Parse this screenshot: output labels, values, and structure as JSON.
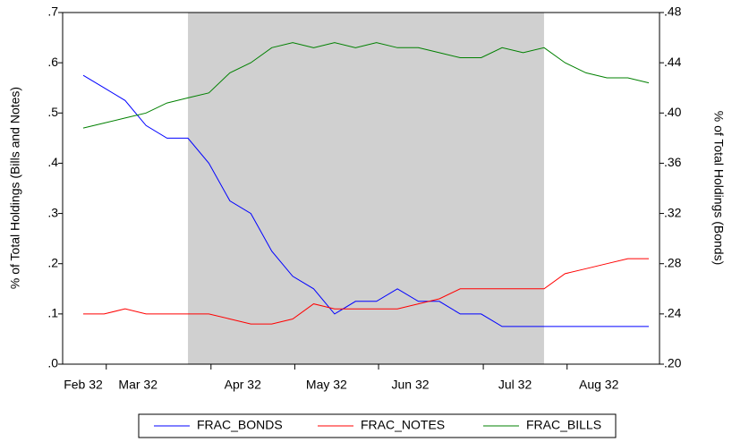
{
  "chart_data": {
    "type": "line",
    "categories": [
      "Feb 32",
      null,
      null,
      "Mar 32",
      null,
      null,
      null,
      null,
      "Apr 32",
      null,
      null,
      null,
      "May 32",
      null,
      null,
      null,
      "Jun 32",
      null,
      null,
      null,
      null,
      "Jul 32",
      null,
      null,
      null,
      "Aug 32",
      null,
      null
    ],
    "y_label": "% of Total Holdings (Bills and Notes)",
    "y2_label": "% of Total Holdings (Bonds)",
    "ylim": [
      0,
      0.7
    ],
    "yticks": [
      {
        "value": 0,
        "label": ".0"
      },
      {
        "value": 0.1,
        "label": ".1"
      },
      {
        "value": 0.2,
        "label": ".2"
      },
      {
        "value": 0.3,
        "label": ".3"
      },
      {
        "value": 0.4,
        "label": ".4"
      },
      {
        "value": 0.5,
        "label": ".5"
      },
      {
        "value": 0.6,
        "label": ".6"
      },
      {
        "value": 0.7,
        "label": ".7"
      }
    ],
    "y2lim": [
      0.2,
      0.48
    ],
    "y2ticks": [
      {
        "value": 0.2,
        "label": ".20"
      },
      {
        "value": 0.24,
        "label": ".24"
      },
      {
        "value": 0.28,
        "label": ".28"
      },
      {
        "value": 0.32,
        "label": ".32"
      },
      {
        "value": 0.36,
        "label": ".36"
      },
      {
        "value": 0.4,
        "label": ".40"
      },
      {
        "value": 0.44,
        "label": ".44"
      },
      {
        "value": 0.48,
        "label": ".48"
      }
    ],
    "shading": [
      5,
      22
    ],
    "shading_color": "#d0d0d0",
    "series": [
      {
        "name": "FRAC_BONDS",
        "color": "#0000ff",
        "axis": "y2",
        "values": [
          0.43,
          0.42,
          0.41,
          0.39,
          0.38,
          0.38,
          0.36,
          0.33,
          0.32,
          0.29,
          0.27,
          0.26,
          0.24,
          0.25,
          0.25,
          0.26,
          0.25,
          0.25,
          0.24,
          0.24,
          0.23,
          0.23,
          0.23,
          0.23,
          0.23,
          0.23,
          0.23,
          0.23
        ]
      },
      {
        "name": "FRAC_NOTES",
        "color": "#ff0000",
        "values": [
          0.1,
          0.1,
          0.11,
          0.1,
          0.1,
          0.1,
          0.1,
          0.09,
          0.08,
          0.08,
          0.09,
          0.12,
          0.11,
          0.11,
          0.11,
          0.11,
          0.12,
          0.13,
          0.15,
          0.15,
          0.15,
          0.15,
          0.15,
          0.18,
          0.19,
          0.2,
          0.21,
          0.21
        ]
      },
      {
        "name": "FRAC_BILLS",
        "color": "#008000",
        "values": [
          0.47,
          0.48,
          0.49,
          0.5,
          0.52,
          0.53,
          0.54,
          0.58,
          0.6,
          0.63,
          0.64,
          0.63,
          0.64,
          0.63,
          0.64,
          0.63,
          0.63,
          0.62,
          0.61,
          0.61,
          0.63,
          0.62,
          0.63,
          0.6,
          0.58,
          0.57,
          0.57,
          0.56
        ]
      }
    ]
  }
}
